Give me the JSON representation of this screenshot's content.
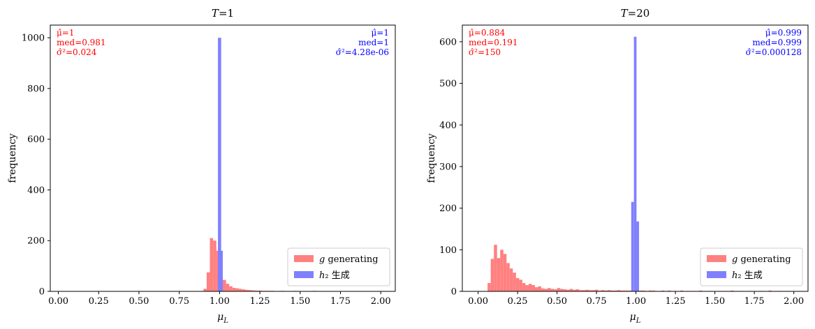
{
  "colors": {
    "g": "#ff8080",
    "h": "#8080ff",
    "stat_left": "#ff0000",
    "stat_right": "#0000ff",
    "frame": "#000000"
  },
  "legend": {
    "g_label": "g generating",
    "h_label": "h₂ 生成",
    "placement": "lower-right"
  },
  "chart_data": [
    {
      "type": "bar",
      "title": "T=1",
      "xlabel": "μ_L",
      "ylabel": "frequency",
      "xlim": [
        -0.05,
        2.09
      ],
      "ylim": [
        0,
        1050
      ],
      "xticks": [
        "0.00",
        "0.25",
        "0.50",
        "0.75",
        "1.00",
        "1.25",
        "1.50",
        "1.75",
        "2.00"
      ],
      "yticks": [
        "0",
        "200",
        "400",
        "600",
        "800",
        "1000"
      ],
      "bin_width": 0.02,
      "stats_g": [
        "μ̂=1",
        "med=0.981",
        "σ̂²=0.024"
      ],
      "stats_h": [
        "μ̂=1",
        "med=1",
        "σ̂²=4.28e-06"
      ],
      "series": [
        {
          "name": "g generating",
          "bins": [
            [
              0.9,
              10
            ],
            [
              0.92,
              75
            ],
            [
              0.94,
              210
            ],
            [
              0.96,
              200
            ],
            [
              0.98,
              160
            ],
            [
              1.0,
              100
            ],
            [
              1.02,
              45
            ],
            [
              1.04,
              30
            ],
            [
              1.06,
              20
            ],
            [
              1.08,
              14
            ],
            [
              1.1,
              12
            ],
            [
              1.12,
              10
            ],
            [
              1.14,
              8
            ],
            [
              1.16,
              6
            ],
            [
              1.18,
              5
            ],
            [
              1.2,
              4
            ],
            [
              1.22,
              3
            ],
            [
              1.24,
              3
            ],
            [
              1.26,
              2
            ],
            [
              1.28,
              2
            ],
            [
              1.3,
              2
            ],
            [
              1.32,
              2
            ],
            [
              1.34,
              1
            ],
            [
              1.38,
              2
            ],
            [
              1.42,
              1
            ],
            [
              1.46,
              2
            ],
            [
              1.52,
              1
            ],
            [
              1.58,
              2
            ],
            [
              1.64,
              1
            ],
            [
              1.7,
              1
            ],
            [
              1.78,
              1
            ],
            [
              1.86,
              1
            ]
          ]
        },
        {
          "name": "h₂ 生成",
          "bins": [
            [
              0.99,
              1000
            ],
            [
              1.0,
              160
            ]
          ],
          "bin_width": 0.02
        }
      ]
    },
    {
      "type": "bar",
      "title": "T=20",
      "xlabel": "μ_L",
      "ylabel": "frequency",
      "xlim": [
        -0.1,
        2.09
      ],
      "ylim": [
        0,
        640
      ],
      "xticks": [
        "0.00",
        "0.25",
        "0.50",
        "0.75",
        "1.00",
        "1.25",
        "1.50",
        "1.75",
        "2.00"
      ],
      "yticks": [
        "0",
        "100",
        "200",
        "300",
        "400",
        "500",
        "600"
      ],
      "bin_width": 0.02,
      "stats_g": [
        "μ̂=0.884",
        "med=0.191",
        "σ̂²=150"
      ],
      "stats_h": [
        "μ̂=0.999",
        "med=0.999",
        "σ̂²=0.000128"
      ],
      "series": [
        {
          "name": "g generating",
          "bins": [
            [
              0.06,
              20
            ],
            [
              0.08,
              78
            ],
            [
              0.1,
              112
            ],
            [
              0.12,
              80
            ],
            [
              0.14,
              100
            ],
            [
              0.16,
              90
            ],
            [
              0.18,
              68
            ],
            [
              0.2,
              55
            ],
            [
              0.22,
              45
            ],
            [
              0.24,
              32
            ],
            [
              0.26,
              28
            ],
            [
              0.28,
              20
            ],
            [
              0.3,
              15
            ],
            [
              0.32,
              18
            ],
            [
              0.34,
              15
            ],
            [
              0.36,
              10
            ],
            [
              0.38,
              12
            ],
            [
              0.4,
              7
            ],
            [
              0.42,
              6
            ],
            [
              0.44,
              8
            ],
            [
              0.46,
              6
            ],
            [
              0.48,
              5
            ],
            [
              0.5,
              8
            ],
            [
              0.52,
              6
            ],
            [
              0.54,
              5
            ],
            [
              0.56,
              4
            ],
            [
              0.58,
              6
            ],
            [
              0.6,
              4
            ],
            [
              0.62,
              5
            ],
            [
              0.64,
              3
            ],
            [
              0.66,
              3
            ],
            [
              0.68,
              4
            ],
            [
              0.7,
              3
            ],
            [
              0.72,
              3
            ],
            [
              0.74,
              4
            ],
            [
              0.76,
              2
            ],
            [
              0.78,
              3
            ],
            [
              0.8,
              2
            ],
            [
              0.82,
              3
            ],
            [
              0.84,
              2
            ],
            [
              0.86,
              2
            ],
            [
              0.88,
              3
            ],
            [
              0.9,
              2
            ],
            [
              0.92,
              2
            ],
            [
              0.94,
              2
            ],
            [
              0.96,
              2
            ],
            [
              0.98,
              2
            ],
            [
              1.0,
              2
            ],
            [
              1.02,
              2
            ],
            [
              1.04,
              2
            ],
            [
              1.06,
              1
            ],
            [
              1.08,
              2
            ],
            [
              1.1,
              2
            ],
            [
              1.12,
              1
            ],
            [
              1.16,
              2
            ],
            [
              1.2,
              2
            ],
            [
              1.24,
              1
            ],
            [
              1.28,
              2
            ],
            [
              1.32,
              1
            ],
            [
              1.36,
              1
            ],
            [
              1.4,
              2
            ],
            [
              1.46,
              1
            ],
            [
              1.52,
              1
            ],
            [
              1.56,
              1
            ],
            [
              1.6,
              2
            ],
            [
              1.66,
              1
            ],
            [
              1.72,
              1
            ],
            [
              1.78,
              1
            ],
            [
              1.84,
              2
            ],
            [
              1.9,
              1
            ],
            [
              1.96,
              1
            ]
          ]
        },
        {
          "name": "h₂ 生成",
          "bins": [
            [
              0.97,
              215
            ],
            [
              0.987,
              612
            ],
            [
              1.003,
              168
            ]
          ],
          "bin_width": 0.0165
        }
      ]
    }
  ]
}
